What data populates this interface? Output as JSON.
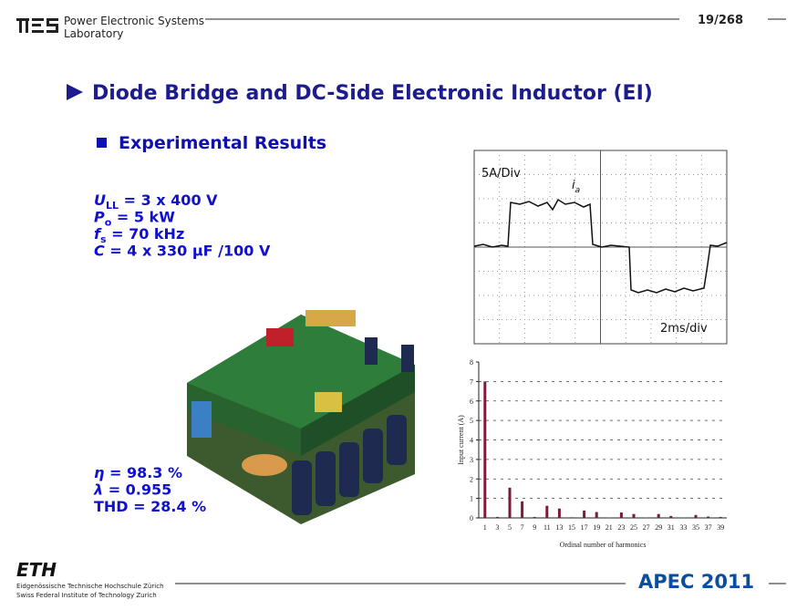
{
  "header": {
    "lab_line1": "Power Electronic Systems",
    "lab_line2": "Laboratory",
    "page": "19/268"
  },
  "title": "Diode Bridge and DC-Side Electronic Inductor (EI)",
  "subtitle": "Experimental Results",
  "parameters": [
    {
      "symbol": "U",
      "subscript": "LL",
      "text": " = 3 x 400 V"
    },
    {
      "symbol": "P",
      "subscript": "o",
      "text": " = 5 kW"
    },
    {
      "symbol": "f",
      "subscript": "s",
      "text": " = 70 kHz"
    },
    {
      "symbol": "C",
      "text": " = 4 x 330 µF /100 V"
    }
  ],
  "results": [
    {
      "symbol": "η",
      "text": " = 98.3 %"
    },
    {
      "symbol": "λ",
      "text": " = 0.955"
    },
    {
      "text": "THD = 28.4 %"
    }
  ],
  "oscilloscope": {
    "scale_current": "5A/Div",
    "signal": "i",
    "signal_subscript": "a",
    "scale_time": "2ms/div"
  },
  "chart_data": {
    "type": "bar",
    "y_label": "Input current (A)",
    "x_label": "Ordinal number of harmonics",
    "categories": [
      1,
      3,
      5,
      7,
      9,
      11,
      13,
      15,
      17,
      19,
      21,
      23,
      25,
      27,
      29,
      31,
      33,
      35,
      37,
      39
    ],
    "values": [
      7.0,
      0.05,
      1.55,
      0.85,
      0.05,
      0.62,
      0.48,
      0.03,
      0.38,
      0.3,
      0.02,
      0.28,
      0.2,
      0.02,
      0.2,
      0.1,
      0.02,
      0.15,
      0.07,
      0.05
    ],
    "color": "#7a1b3a",
    "ylim": [
      0,
      8
    ],
    "yticks": [
      0,
      1,
      2,
      3,
      4,
      5,
      6,
      7,
      8
    ],
    "grid": true
  },
  "footer": {
    "logo": "ETH",
    "line1": "Eidgenössische Technische Hochschule Zürich",
    "line2": "Swiss Federal Institute of Technology Zurich",
    "conference": "APEC 2011"
  }
}
